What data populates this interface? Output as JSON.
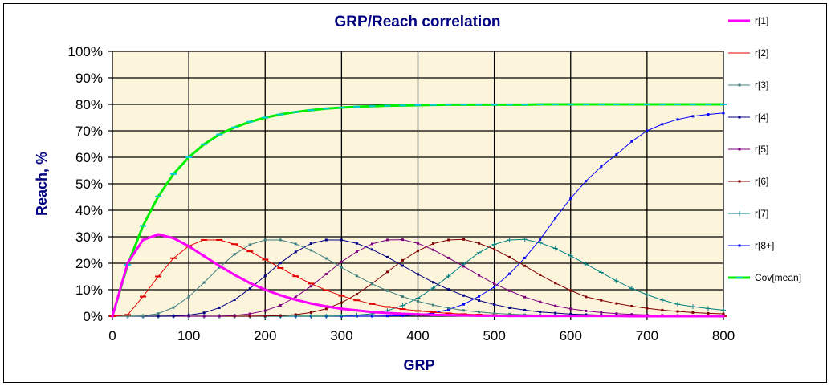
{
  "chart_data": {
    "type": "line",
    "title": "GRP/Reach  correlation",
    "xlabel": "GRP",
    "ylabel": "Reach, %",
    "xlim": [
      0,
      800
    ],
    "ylim": [
      0,
      100
    ],
    "grid": true,
    "legend_position": "right",
    "x_ticks": [
      "0",
      "100",
      "200",
      "300",
      "400",
      "500",
      "600",
      "700",
      "800"
    ],
    "y_ticks": [
      "0%",
      "10%",
      "20%",
      "30%",
      "40%",
      "50%",
      "60%",
      "70%",
      "80%",
      "90%",
      "100%"
    ],
    "x": [
      0,
      20,
      40,
      60,
      80,
      100,
      120,
      140,
      160,
      180,
      200,
      220,
      240,
      260,
      280,
      300,
      320,
      340,
      360,
      380,
      400,
      420,
      440,
      460,
      480,
      500,
      520,
      540,
      560,
      580,
      600,
      620,
      640,
      660,
      680,
      700,
      720,
      740,
      760,
      780,
      800
    ],
    "series": [
      {
        "name": "r[1]",
        "color": "#ff00ff",
        "width": 3,
        "marker": "square",
        "values": [
          0,
          20.1,
          28.8,
          30.9,
          29.5,
          26.4,
          22.7,
          19.0,
          15.6,
          12.5,
          10.0,
          7.9,
          6.2,
          4.8,
          3.7,
          2.8,
          2.2,
          1.6,
          1.2,
          0.9,
          0.7,
          0.5,
          0.4,
          0.3,
          0.2,
          0.2,
          0.1,
          0.1,
          0.1,
          0.1,
          0.1,
          0.1,
          0.1,
          0.1,
          0,
          0,
          0,
          0,
          0,
          0,
          0
        ]
      },
      {
        "name": "r[2]",
        "color": "#e00000",
        "width": 1,
        "marker": "dash",
        "values": [
          0,
          0.5,
          7.4,
          15.0,
          21.9,
          26.5,
          28.8,
          28.8,
          27.2,
          24.5,
          21.4,
          18.2,
          15.1,
          12.3,
          9.8,
          7.7,
          6.0,
          4.6,
          3.5,
          2.7,
          2.0,
          1.5,
          1.1,
          0.8,
          0.6,
          0.45,
          0.33,
          0.24,
          0.18,
          0.13,
          0.1,
          0.1,
          0.1,
          0.1,
          0,
          0,
          0,
          0,
          0,
          0,
          0
        ]
      },
      {
        "name": "r[3]",
        "color": "#408080",
        "width": 1,
        "marker": "square",
        "values": [
          0,
          0,
          0.1,
          1.0,
          3.3,
          7.3,
          12.7,
          18.4,
          23.4,
          27.0,
          28.8,
          28.8,
          27.3,
          24.9,
          21.8,
          18.4,
          15.2,
          12.2,
          9.6,
          7.4,
          5.6,
          4.2,
          3.1,
          2.2,
          1.6,
          1.1,
          0.8,
          0.55,
          0.4,
          0.28,
          0.2,
          0.14,
          0.1,
          0.1,
          0.1,
          0,
          0,
          0,
          0,
          0,
          0
        ]
      },
      {
        "name": "r[4]",
        "color": "#000080",
        "width": 1,
        "marker": "square",
        "values": [
          0,
          0,
          0,
          0,
          0.1,
          0.4,
          1.3,
          3.2,
          6.2,
          10.4,
          15.2,
          20.1,
          24.3,
          27.4,
          28.8,
          28.8,
          27.5,
          25.2,
          22.3,
          19.1,
          15.8,
          12.8,
          10.1,
          7.8,
          5.9,
          4.4,
          3.2,
          2.3,
          1.6,
          1.2,
          0.8,
          0.6,
          0.4,
          0.3,
          0.2,
          0.14,
          0.1,
          0.1,
          0.1,
          0,
          0
        ]
      },
      {
        "name": "r[5]",
        "color": "#800080",
        "width": 1,
        "marker": "square",
        "values": [
          0,
          0,
          0,
          0,
          0,
          0,
          0,
          0,
          0.3,
          0.9,
          2.1,
          4.1,
          7.3,
          11.3,
          15.9,
          20.5,
          24.4,
          27.3,
          28.8,
          28.9,
          27.5,
          25.1,
          22.0,
          18.8,
          15.4,
          12.3,
          9.6,
          7.2,
          5.4,
          3.9,
          2.8,
          2.0,
          1.4,
          1.0,
          0.7,
          0.5,
          0.35,
          0.25,
          0.17,
          0.12,
          0.1
        ]
      },
      {
        "name": "r[6]",
        "color": "#800000",
        "width": 1,
        "marker": "square",
        "values": [
          0,
          0,
          0,
          0,
          0,
          0,
          0,
          0,
          0,
          0,
          0.1,
          0.2,
          0.6,
          1.4,
          2.8,
          5.1,
          8.3,
          12.3,
          16.7,
          21.1,
          24.7,
          27.4,
          28.8,
          29.0,
          27.5,
          25.3,
          22.3,
          19.0,
          15.6,
          12.5,
          9.7,
          7.3,
          6.0,
          4.8,
          3.8,
          3.0,
          2.3,
          1.8,
          1.4,
          1.1,
          0.9
        ]
      },
      {
        "name": "r[7]",
        "color": "#008080",
        "width": 1,
        "marker": "plus",
        "values": [
          0,
          0,
          0,
          0,
          0,
          0,
          0,
          0,
          0,
          0,
          0,
          0,
          0,
          0,
          0,
          0.1,
          0.4,
          0.9,
          2.1,
          4.0,
          6.8,
          10.6,
          15.1,
          19.7,
          24.0,
          27.1,
          28.8,
          29.0,
          27.7,
          25.6,
          22.8,
          19.7,
          16.5,
          13.3,
          10.5,
          8.1,
          6.1,
          4.5,
          3.6,
          2.9,
          2.3
        ]
      },
      {
        "name": "r[8+]",
        "color": "#0000ff",
        "width": 1,
        "marker": "square",
        "values": [
          0,
          0,
          0,
          0,
          0,
          0,
          0,
          0,
          0,
          0,
          0,
          0,
          0,
          0,
          0,
          0,
          0,
          0,
          0.1,
          0.2,
          0.5,
          1.2,
          2.5,
          4.5,
          7.5,
          11.0,
          16.0,
          22.0,
          29.0,
          37.0,
          44.5,
          51.0,
          56.5,
          61.0,
          66.0,
          70.0,
          72.5,
          74.3,
          75.5,
          76.2,
          76.7
        ]
      },
      {
        "name": "Cov[mean]",
        "color": "#00ee00",
        "marker_color": "#00c8e0",
        "width": 3,
        "marker": "dash",
        "values": [
          0,
          19.4,
          34.1,
          45.2,
          53.7,
          60.0,
          64.9,
          68.6,
          71.3,
          73.4,
          75.0,
          76.2,
          77.1,
          77.8,
          78.4,
          78.8,
          79.1,
          79.3,
          79.5,
          79.6,
          79.7,
          79.8,
          79.9,
          79.9,
          79.9,
          79.9,
          79.9,
          79.9,
          80.0,
          80.0,
          80.0,
          80.0,
          80.0,
          80.0,
          80.0,
          80.0,
          80.0,
          80.0,
          80.0,
          80.0,
          80.0
        ]
      }
    ]
  },
  "colors": {
    "plot_bg": "#fdf4dc",
    "title": "#000080",
    "border": "#000000"
  }
}
